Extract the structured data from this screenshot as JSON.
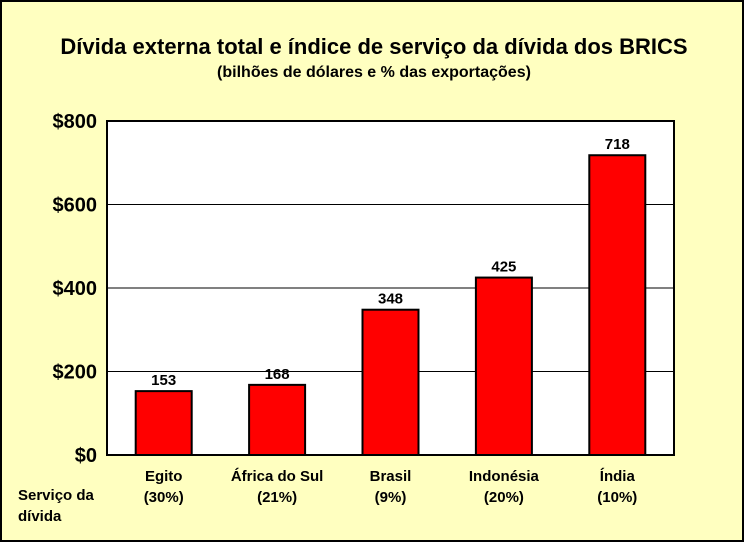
{
  "chart_data": {
    "type": "bar",
    "title": "Dívida externa total e índice de serviço da dívida dos BRICS",
    "subtitle": "(bilhões de dólares e % das exportações)",
    "categories": [
      "Egito",
      "África do Sul",
      "Brasil",
      "Indonésia",
      "Índia"
    ],
    "debt_service": [
      "(30%)",
      "(21%)",
      "(9%)",
      "(20%)",
      "(10%)"
    ],
    "values": [
      153,
      168,
      348,
      425,
      718
    ],
    "value_labels": [
      "153",
      "168",
      "348",
      "425",
      "718"
    ],
    "ylim": [
      0,
      800
    ],
    "yticks": [
      0,
      200,
      400,
      600,
      800
    ],
    "ytick_labels": [
      "$0",
      "$200",
      "$400",
      "$600",
      "$800"
    ],
    "side_label_line1": "Serviço da",
    "side_label_line2": "dívida",
    "grid": true,
    "colors": {
      "bar": "#ff0000",
      "plot_background": "#ffffff",
      "frame_background": "#ffffc0"
    }
  }
}
